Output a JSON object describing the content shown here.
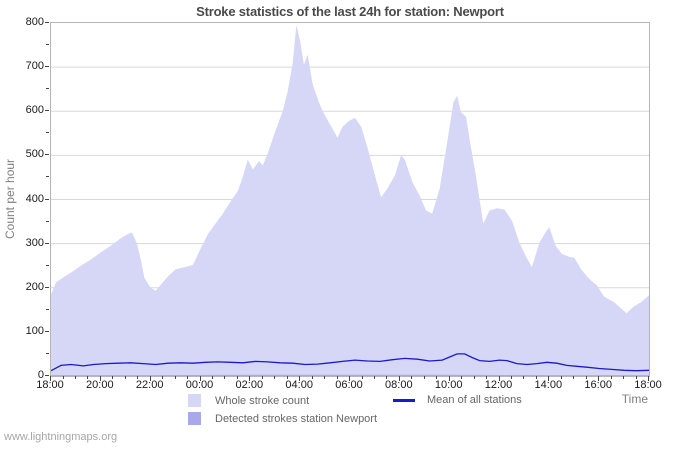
{
  "title": "Stroke statistics of the last 24h for station: Newport",
  "footer": "www.lightningmaps.org",
  "y_axis": {
    "label": "Count per hour",
    "tick_labels": [
      "0",
      "100",
      "200",
      "300",
      "400",
      "500",
      "600",
      "700",
      "800"
    ],
    "major_step": 100,
    "minor_step": 50,
    "max": 800
  },
  "x_axis": {
    "label": "Time",
    "tick_labels": [
      "18:00",
      "20:00",
      "22:00",
      "00:00",
      "02:00",
      "04:00",
      "06:00",
      "08:00",
      "10:00",
      "12:00",
      "14:00",
      "16:00",
      "18:00"
    ],
    "major_step_hours": 2,
    "minor_step_hours": 0.5,
    "hours_span": 24
  },
  "legend": [
    {
      "label": "Whole stroke count",
      "type": "area",
      "color": "#d6d6f7"
    },
    {
      "label": "Detected strokes station Newport",
      "type": "area",
      "color": "#a9a9ea"
    },
    {
      "label": "Mean of all stations",
      "type": "line",
      "color": "#1a1acc"
    }
  ],
  "colors": {
    "gridline": "#d8d8d8",
    "plot_border": "#b5b5b5",
    "area_fill": "#d6d6f7",
    "detected_fill": "#a9a9ea",
    "mean_line": "#1a1acc",
    "tick_text": "#1a1a1a",
    "axis_label_text": "#808080",
    "title_text": "#4a4a4a",
    "footer_text": "#a6a6a6"
  },
  "chart_data": {
    "type": "area",
    "title": "Stroke statistics of the last 24h for station: Newport",
    "xlabel": "Time",
    "ylabel": "Count per hour",
    "x_unit": "hours after 18:00 (24 h span, ticks every 2 h from 18:00 to 18:00)",
    "xlim": [
      0,
      24
    ],
    "ylim": [
      0,
      800
    ],
    "grid": true,
    "legend_position": "bottom",
    "series": [
      {
        "name": "Whole stroke count",
        "type": "area",
        "color": "#d6d6f7",
        "points": [
          [
            0,
            185
          ],
          [
            0.2,
            212
          ],
          [
            0.5,
            224
          ],
          [
            0.9,
            238
          ],
          [
            1.2,
            250
          ],
          [
            1.6,
            264
          ],
          [
            2.0,
            280
          ],
          [
            2.4,
            295
          ],
          [
            2.8,
            312
          ],
          [
            3.1,
            322
          ],
          [
            3.25,
            325
          ],
          [
            3.45,
            300
          ],
          [
            3.6,
            265
          ],
          [
            3.75,
            222
          ],
          [
            4.0,
            200
          ],
          [
            4.2,
            193
          ],
          [
            4.45,
            210
          ],
          [
            4.7,
            226
          ],
          [
            5.0,
            242
          ],
          [
            5.4,
            247
          ],
          [
            5.7,
            252
          ],
          [
            6.0,
            288
          ],
          [
            6.3,
            322
          ],
          [
            6.6,
            345
          ],
          [
            6.9,
            368
          ],
          [
            7.2,
            395
          ],
          [
            7.5,
            420
          ],
          [
            7.7,
            452
          ],
          [
            7.9,
            490
          ],
          [
            8.1,
            468
          ],
          [
            8.35,
            487
          ],
          [
            8.5,
            477
          ],
          [
            8.7,
            505
          ],
          [
            9.0,
            555
          ],
          [
            9.3,
            600
          ],
          [
            9.5,
            645
          ],
          [
            9.7,
            710
          ],
          [
            9.85,
            795
          ],
          [
            10.0,
            758
          ],
          [
            10.15,
            705
          ],
          [
            10.3,
            728
          ],
          [
            10.5,
            662
          ],
          [
            10.7,
            628
          ],
          [
            10.9,
            600
          ],
          [
            11.1,
            580
          ],
          [
            11.3,
            560
          ],
          [
            11.5,
            540
          ],
          [
            11.7,
            565
          ],
          [
            11.95,
            578
          ],
          [
            12.2,
            585
          ],
          [
            12.45,
            565
          ],
          [
            12.7,
            518
          ],
          [
            13.0,
            455
          ],
          [
            13.25,
            405
          ],
          [
            13.5,
            425
          ],
          [
            13.8,
            455
          ],
          [
            14.05,
            500
          ],
          [
            14.2,
            490
          ],
          [
            14.5,
            440
          ],
          [
            14.8,
            408
          ],
          [
            15.05,
            375
          ],
          [
            15.3,
            368
          ],
          [
            15.6,
            425
          ],
          [
            15.9,
            530
          ],
          [
            16.15,
            620
          ],
          [
            16.3,
            635
          ],
          [
            16.45,
            598
          ],
          [
            16.65,
            588
          ],
          [
            16.85,
            520
          ],
          [
            17.05,
            455
          ],
          [
            17.35,
            345
          ],
          [
            17.6,
            375
          ],
          [
            17.9,
            380
          ],
          [
            18.2,
            377
          ],
          [
            18.5,
            352
          ],
          [
            18.8,
            302
          ],
          [
            19.05,
            272
          ],
          [
            19.3,
            247
          ],
          [
            19.6,
            302
          ],
          [
            19.9,
            330
          ],
          [
            20.0,
            337
          ],
          [
            20.25,
            295
          ],
          [
            20.5,
            277
          ],
          [
            20.8,
            270
          ],
          [
            21.0,
            268
          ],
          [
            21.3,
            240
          ],
          [
            21.6,
            220
          ],
          [
            21.9,
            206
          ],
          [
            22.2,
            180
          ],
          [
            22.6,
            167
          ],
          [
            22.9,
            152
          ],
          [
            23.1,
            142
          ],
          [
            23.4,
            158
          ],
          [
            23.7,
            168
          ],
          [
            24,
            183
          ]
        ]
      },
      {
        "name": "Detected strokes station Newport",
        "type": "area",
        "color": "#a9a9ea",
        "points": [
          [
            0,
            2
          ],
          [
            4,
            2
          ],
          [
            8,
            3
          ],
          [
            12,
            3
          ],
          [
            16,
            3
          ],
          [
            20,
            2
          ],
          [
            24,
            2
          ]
        ]
      },
      {
        "name": "Mean of all stations",
        "type": "line",
        "color": "#1a1acc",
        "points": [
          [
            0,
            12
          ],
          [
            0.4,
            24
          ],
          [
            0.8,
            26
          ],
          [
            1.3,
            23
          ],
          [
            1.7,
            26
          ],
          [
            2.2,
            28
          ],
          [
            2.7,
            29
          ],
          [
            3.2,
            30
          ],
          [
            3.7,
            28
          ],
          [
            4.2,
            26
          ],
          [
            4.7,
            29
          ],
          [
            5.2,
            30
          ],
          [
            5.7,
            29
          ],
          [
            6.2,
            31
          ],
          [
            6.7,
            32
          ],
          [
            7.2,
            31
          ],
          [
            7.7,
            30
          ],
          [
            8.2,
            33
          ],
          [
            8.7,
            32
          ],
          [
            9.2,
            30
          ],
          [
            9.7,
            29
          ],
          [
            10.2,
            26
          ],
          [
            10.7,
            27
          ],
          [
            11.2,
            30
          ],
          [
            11.7,
            33
          ],
          [
            12.2,
            36
          ],
          [
            12.7,
            34
          ],
          [
            13.2,
            33
          ],
          [
            13.7,
            37
          ],
          [
            14.2,
            40
          ],
          [
            14.7,
            38
          ],
          [
            15.2,
            34
          ],
          [
            15.7,
            36
          ],
          [
            16.0,
            43
          ],
          [
            16.3,
            50
          ],
          [
            16.6,
            50
          ],
          [
            16.9,
            42
          ],
          [
            17.2,
            35
          ],
          [
            17.6,
            33
          ],
          [
            18.0,
            36
          ],
          [
            18.3,
            35
          ],
          [
            18.7,
            28
          ],
          [
            19.1,
            26
          ],
          [
            19.5,
            28
          ],
          [
            19.9,
            31
          ],
          [
            20.3,
            29
          ],
          [
            20.7,
            24
          ],
          [
            21.1,
            22
          ],
          [
            21.5,
            20
          ],
          [
            22.0,
            17
          ],
          [
            22.5,
            15
          ],
          [
            23.0,
            13
          ],
          [
            23.5,
            12
          ],
          [
            24,
            13
          ]
        ]
      }
    ]
  }
}
